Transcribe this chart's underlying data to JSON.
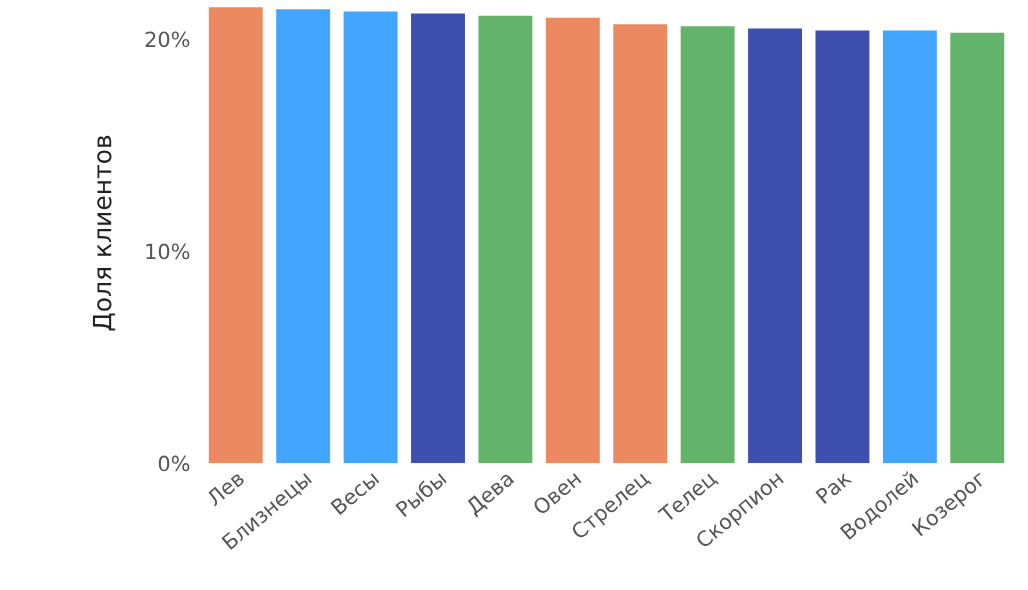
{
  "chart_data": {
    "type": "bar",
    "ylabel": "Доля клиентов",
    "categories": [
      "Лев",
      "Близнецы",
      "Весы",
      "Рыбы",
      "Дева",
      "Овен",
      "Стрелец",
      "Телец",
      "Скорпион",
      "Рак",
      "Водолей",
      "Козерог"
    ],
    "values": [
      21.5,
      21.4,
      21.3,
      21.2,
      21.1,
      21.0,
      20.7,
      20.6,
      20.5,
      20.4,
      20.4,
      20.3
    ],
    "colors": [
      "#eb8a60",
      "#42a5ff",
      "#42a5ff",
      "#3f4fb0",
      "#63b46a",
      "#eb8a60",
      "#eb8a60",
      "#63b46a",
      "#3f4fb0",
      "#3f4fb0",
      "#42a5ff",
      "#63b46a"
    ],
    "ylim": [
      0,
      21.7
    ],
    "yticks": [
      {
        "value": 0,
        "label": "0%"
      },
      {
        "value": 10,
        "label": "10%"
      },
      {
        "value": 20,
        "label": "20%"
      }
    ],
    "grid": false
  }
}
